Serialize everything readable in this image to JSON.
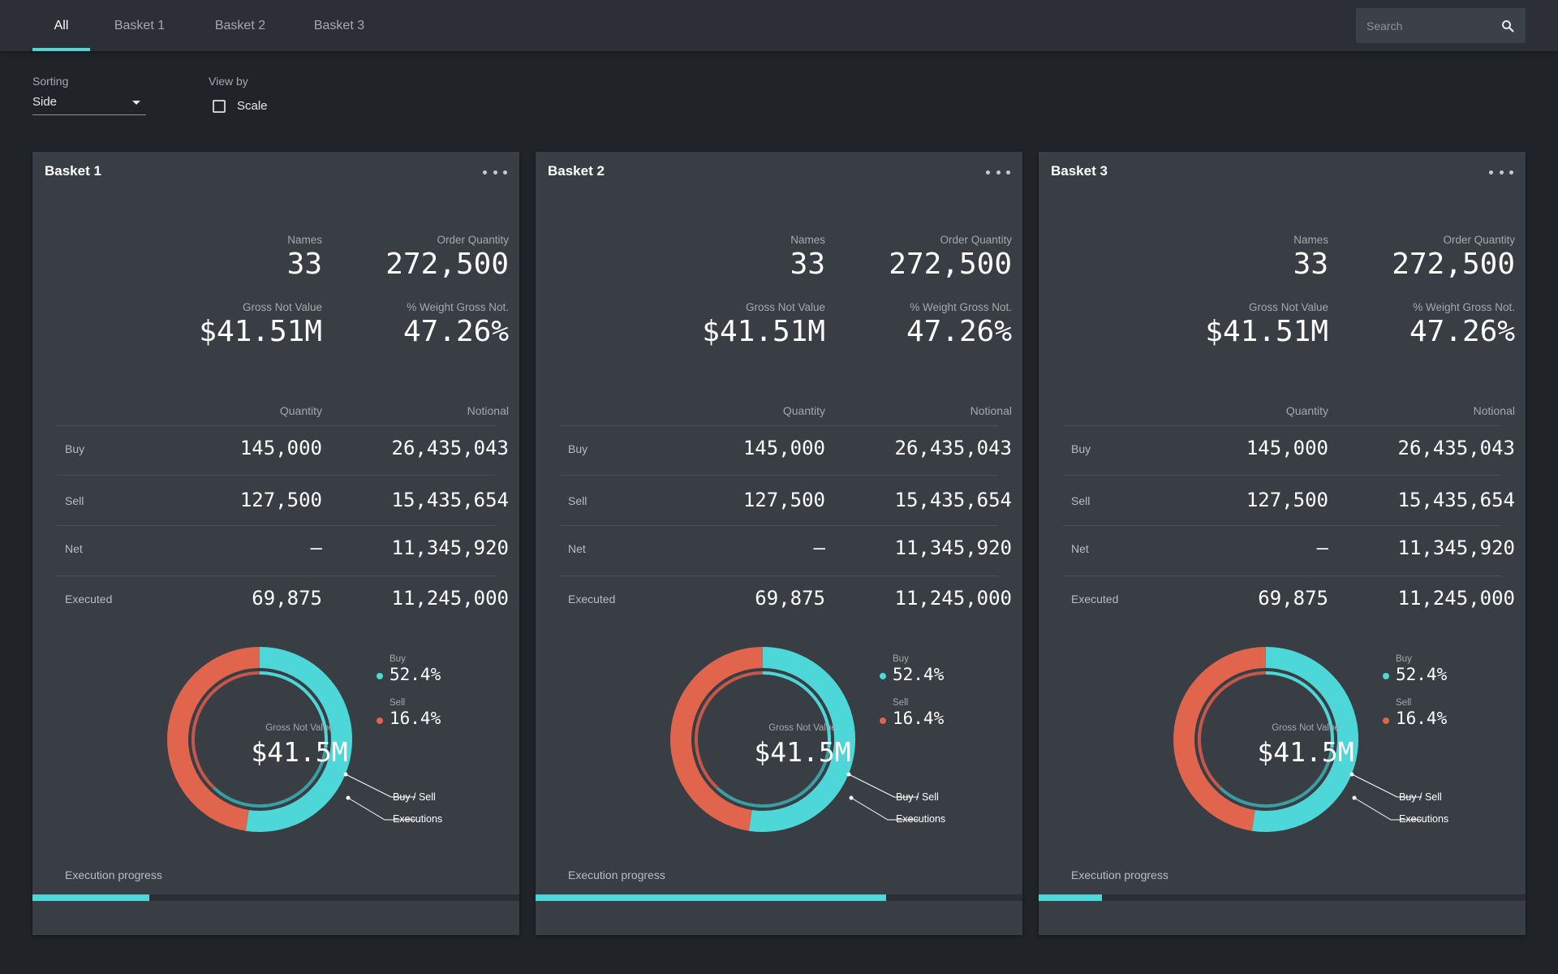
{
  "tabs": [
    {
      "label": "All",
      "active": true
    },
    {
      "label": "Basket 1",
      "active": false
    },
    {
      "label": "Basket 2",
      "active": false
    },
    {
      "label": "Basket 3",
      "active": false
    }
  ],
  "search": {
    "placeholder": "Search"
  },
  "controls": {
    "sorting_label": "Sorting",
    "sorting_value": "Side",
    "view_by_label": "View by",
    "scale_label": "Scale",
    "scale_checked": false
  },
  "colors": {
    "buy": "#4dd7d9",
    "sell": "#e0654c",
    "accent": "#4dd7d9"
  },
  "baskets": [
    {
      "title": "Basket 1",
      "stats": {
        "names_label": "Names",
        "names": "33",
        "order_qty_label": "Order Quantity",
        "order_qty": "272,500",
        "gross_label": "Gross Not Value",
        "gross": "$41.51M",
        "weight_label": "% Weight Gross Not.",
        "weight": "47.26%"
      },
      "table": {
        "qty_header": "Quantity",
        "notional_header": "Notional",
        "rows": [
          {
            "label": "Buy",
            "qty": "145,000",
            "notional": "26,435,043"
          },
          {
            "label": "Sell",
            "qty": "127,500",
            "notional": "15,435,654"
          },
          {
            "label": "Net",
            "qty": "—",
            "notional": "11,345,920"
          },
          {
            "label": "Executed",
            "qty": "69,875",
            "notional": "11,245,000"
          }
        ]
      },
      "donut": {
        "center_label": "Gross Not Value",
        "center_value": "$41.5M",
        "buy_label": "Buy",
        "buy_pct": "52.4%",
        "buy_fraction": 0.524,
        "sell_label": "Sell",
        "sell_pct": "16.4%",
        "inner_exec_fraction": 0.27,
        "callout_buy_sell": "Buy / Sell",
        "callout_exec": "Executions"
      },
      "progress_label": "Execution progress",
      "progress": 0.24
    },
    {
      "title": "Basket 2",
      "stats": {
        "names_label": "Names",
        "names": "33",
        "order_qty_label": "Order Quantity",
        "order_qty": "272,500",
        "gross_label": "Gross Not Value",
        "gross": "$41.51M",
        "weight_label": "% Weight Gross Not.",
        "weight": "47.26%"
      },
      "table": {
        "qty_header": "Quantity",
        "notional_header": "Notional",
        "rows": [
          {
            "label": "Buy",
            "qty": "145,000",
            "notional": "26,435,043"
          },
          {
            "label": "Sell",
            "qty": "127,500",
            "notional": "15,435,654"
          },
          {
            "label": "Net",
            "qty": "—",
            "notional": "11,345,920"
          },
          {
            "label": "Executed",
            "qty": "69,875",
            "notional": "11,245,000"
          }
        ]
      },
      "donut": {
        "center_label": "Gross Not Value",
        "center_value": "$41.5M",
        "buy_label": "Buy",
        "buy_pct": "52.4%",
        "buy_fraction": 0.524,
        "sell_label": "Sell",
        "sell_pct": "16.4%",
        "inner_exec_fraction": 0.27,
        "callout_buy_sell": "Buy / Sell",
        "callout_exec": "Executions"
      },
      "progress_label": "Execution progress",
      "progress": 0.72
    },
    {
      "title": "Basket 3",
      "stats": {
        "names_label": "Names",
        "names": "33",
        "order_qty_label": "Order Quantity",
        "order_qty": "272,500",
        "gross_label": "Gross Not Value",
        "gross": "$41.51M",
        "weight_label": "% Weight Gross Not.",
        "weight": "47.26%"
      },
      "table": {
        "qty_header": "Quantity",
        "notional_header": "Notional",
        "rows": [
          {
            "label": "Buy",
            "qty": "145,000",
            "notional": "26,435,043"
          },
          {
            "label": "Sell",
            "qty": "127,500",
            "notional": "15,435,654"
          },
          {
            "label": "Net",
            "qty": "—",
            "notional": "11,345,920"
          },
          {
            "label": "Executed",
            "qty": "69,875",
            "notional": "11,245,000"
          }
        ]
      },
      "donut": {
        "center_label": "Gross Not Value",
        "center_value": "$41.5M",
        "buy_label": "Buy",
        "buy_pct": "52.4%",
        "buy_fraction": 0.524,
        "sell_label": "Sell",
        "sell_pct": "16.4%",
        "inner_exec_fraction": 0.27,
        "callout_buy_sell": "Buy / Sell",
        "callout_exec": "Executions"
      },
      "progress_label": "Execution progress",
      "progress": 0.13
    }
  ]
}
